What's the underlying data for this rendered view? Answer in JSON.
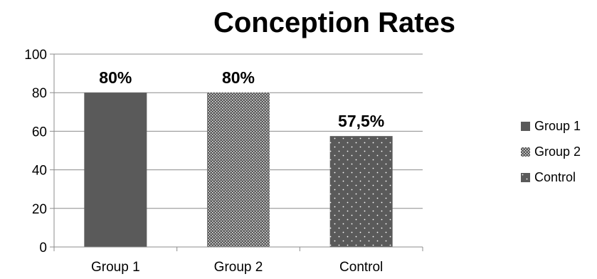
{
  "chart_data": {
    "type": "bar",
    "title": "Conception Rates",
    "categories": [
      "Group 1",
      "Group 2",
      "Control"
    ],
    "values": [
      80,
      80,
      57.5
    ],
    "data_labels": [
      "80%",
      "80%",
      "57,5%"
    ],
    "ylim": [
      0,
      100
    ],
    "yticks": [
      0,
      20,
      40,
      60,
      80,
      100
    ],
    "xlabel": "",
    "ylabel": "",
    "grid": true,
    "legend_position": "right",
    "legend": [
      "Group 1",
      "Group 2",
      "Control"
    ],
    "bar_styles": [
      "solid",
      "crosshatch",
      "dotted"
    ],
    "colors": {
      "bar": "#5a5a5a",
      "grid": "#8c8c8c",
      "axis": "#8c8c8c"
    }
  }
}
